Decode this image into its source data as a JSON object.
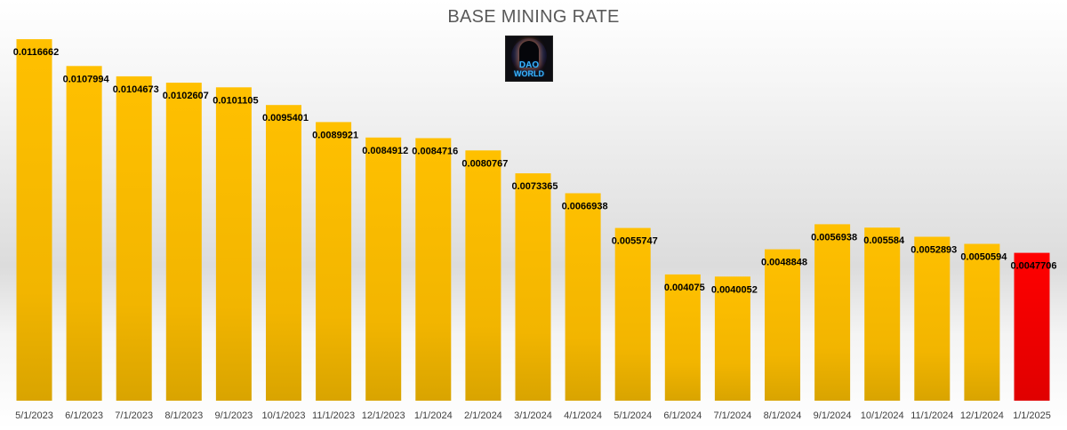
{
  "chart_data": {
    "type": "bar",
    "title": "BASE MINING RATE",
    "logo_text": "DAO WORLD",
    "categories": [
      "5/1/2023",
      "6/1/2023",
      "7/1/2023",
      "8/1/2023",
      "9/1/2023",
      "10/1/2023",
      "11/1/2023",
      "12/1/2023",
      "1/1/2024",
      "2/1/2024",
      "3/1/2024",
      "4/1/2024",
      "5/1/2024",
      "6/1/2024",
      "7/1/2024",
      "8/1/2024",
      "9/1/2024",
      "10/1/2024",
      "11/1/2024",
      "12/1/2024",
      "1/1/2025"
    ],
    "values": [
      0.0116662,
      0.0107994,
      0.0104673,
      0.0102607,
      0.0101105,
      0.0095401,
      0.0089921,
      0.0084912,
      0.0084716,
      0.0080767,
      0.0073365,
      0.0066938,
      0.0055747,
      0.004075,
      0.0040052,
      0.0048848,
      0.0056938,
      0.005584,
      0.0052893,
      0.0050594,
      0.0047706
    ],
    "labels": [
      "0.0116662",
      "0.0107994",
      "0.0104673",
      "0.0102607",
      "0.0101105",
      "0.0095401",
      "0.0089921",
      "0.0084912",
      "0.0084716",
      "0.0080767",
      "0.0073365",
      "0.0066938",
      "0.0055747",
      "0.004075",
      "0.0040052",
      "0.0048848",
      "0.0056938",
      "0.005584",
      "0.0052893",
      "0.0050594",
      "0.0047706"
    ],
    "ylim": [
      0,
      0.0125
    ],
    "grid": false,
    "legend": "none",
    "xlabel": "",
    "ylabel": "",
    "colors": {
      "bar_top": "#ffc000",
      "bar_bottom": "#d9a400",
      "highlight_top": "#ff0000",
      "highlight_bottom": "#e00000",
      "label": "#000000",
      "tick": "#404040"
    }
  }
}
